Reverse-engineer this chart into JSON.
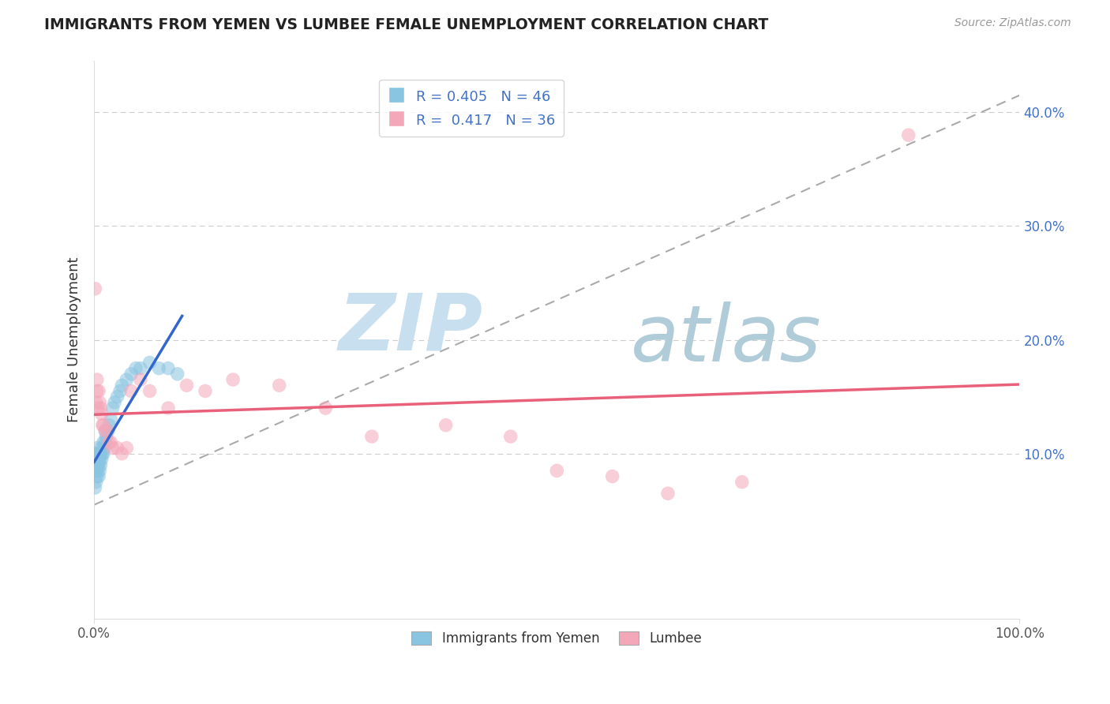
{
  "title": "IMMIGRANTS FROM YEMEN VS LUMBEE FEMALE UNEMPLOYMENT CORRELATION CHART",
  "source": "Source: ZipAtlas.com",
  "ylabel": "Female Unemployment",
  "xlim": [
    0,
    1.0
  ],
  "ylim": [
    -0.045,
    0.445
  ],
  "ytick_values": [
    0.1,
    0.2,
    0.3,
    0.4
  ],
  "ytick_labels": [
    "10.0%",
    "20.0%",
    "30.0%",
    "40.0%"
  ],
  "legend_label1": "Immigrants from Yemen",
  "legend_label2": "Lumbee",
  "color_blue": "#89c4e1",
  "color_pink": "#f4a7b9",
  "color_blue_line": "#3366cc",
  "color_pink_line": "#e8607a",
  "color_dashed": "#aaaaaa",
  "watermark_zip_color": "#c8dff0",
  "watermark_atlas_color": "#b0ccd8",
  "background_color": "#ffffff",
  "grid_color": "#cccccc",
  "yemen_x": [
    0.001,
    0.001,
    0.001,
    0.002,
    0.002,
    0.002,
    0.002,
    0.003,
    0.003,
    0.003,
    0.003,
    0.004,
    0.004,
    0.004,
    0.005,
    0.005,
    0.005,
    0.006,
    0.006,
    0.007,
    0.007,
    0.008,
    0.008,
    0.009,
    0.01,
    0.01,
    0.011,
    0.012,
    0.012,
    0.013,
    0.015,
    0.016,
    0.018,
    0.02,
    0.022,
    0.025,
    0.028,
    0.03,
    0.035,
    0.04,
    0.045,
    0.05,
    0.06,
    0.07,
    0.08,
    0.09
  ],
  "yemen_y": [
    0.07,
    0.085,
    0.095,
    0.075,
    0.085,
    0.09,
    0.1,
    0.08,
    0.09,
    0.095,
    0.105,
    0.085,
    0.095,
    0.1,
    0.08,
    0.09,
    0.1,
    0.085,
    0.095,
    0.09,
    0.1,
    0.095,
    0.105,
    0.1,
    0.1,
    0.11,
    0.105,
    0.11,
    0.12,
    0.115,
    0.12,
    0.125,
    0.13,
    0.14,
    0.145,
    0.15,
    0.155,
    0.16,
    0.165,
    0.17,
    0.175,
    0.175,
    0.18,
    0.175,
    0.175,
    0.17
  ],
  "lumbee_x": [
    0.001,
    0.002,
    0.003,
    0.003,
    0.004,
    0.005,
    0.006,
    0.007,
    0.008,
    0.009,
    0.01,
    0.012,
    0.014,
    0.016,
    0.018,
    0.02,
    0.025,
    0.03,
    0.035,
    0.04,
    0.05,
    0.06,
    0.08,
    0.1,
    0.12,
    0.15,
    0.2,
    0.25,
    0.3,
    0.38,
    0.45,
    0.5,
    0.56,
    0.62,
    0.7,
    0.88
  ],
  "lumbee_y": [
    0.245,
    0.145,
    0.155,
    0.165,
    0.14,
    0.155,
    0.145,
    0.14,
    0.135,
    0.125,
    0.125,
    0.12,
    0.12,
    0.11,
    0.11,
    0.105,
    0.105,
    0.1,
    0.105,
    0.155,
    0.165,
    0.155,
    0.14,
    0.16,
    0.155,
    0.165,
    0.16,
    0.14,
    0.115,
    0.125,
    0.115,
    0.085,
    0.08,
    0.065,
    0.075,
    0.38
  ],
  "blue_line_x": [
    0.0,
    0.095
  ],
  "pink_line_x": [
    0.0,
    1.0
  ],
  "dashed_line": [
    [
      0.0,
      1.0
    ],
    [
      0.055,
      0.415
    ]
  ]
}
